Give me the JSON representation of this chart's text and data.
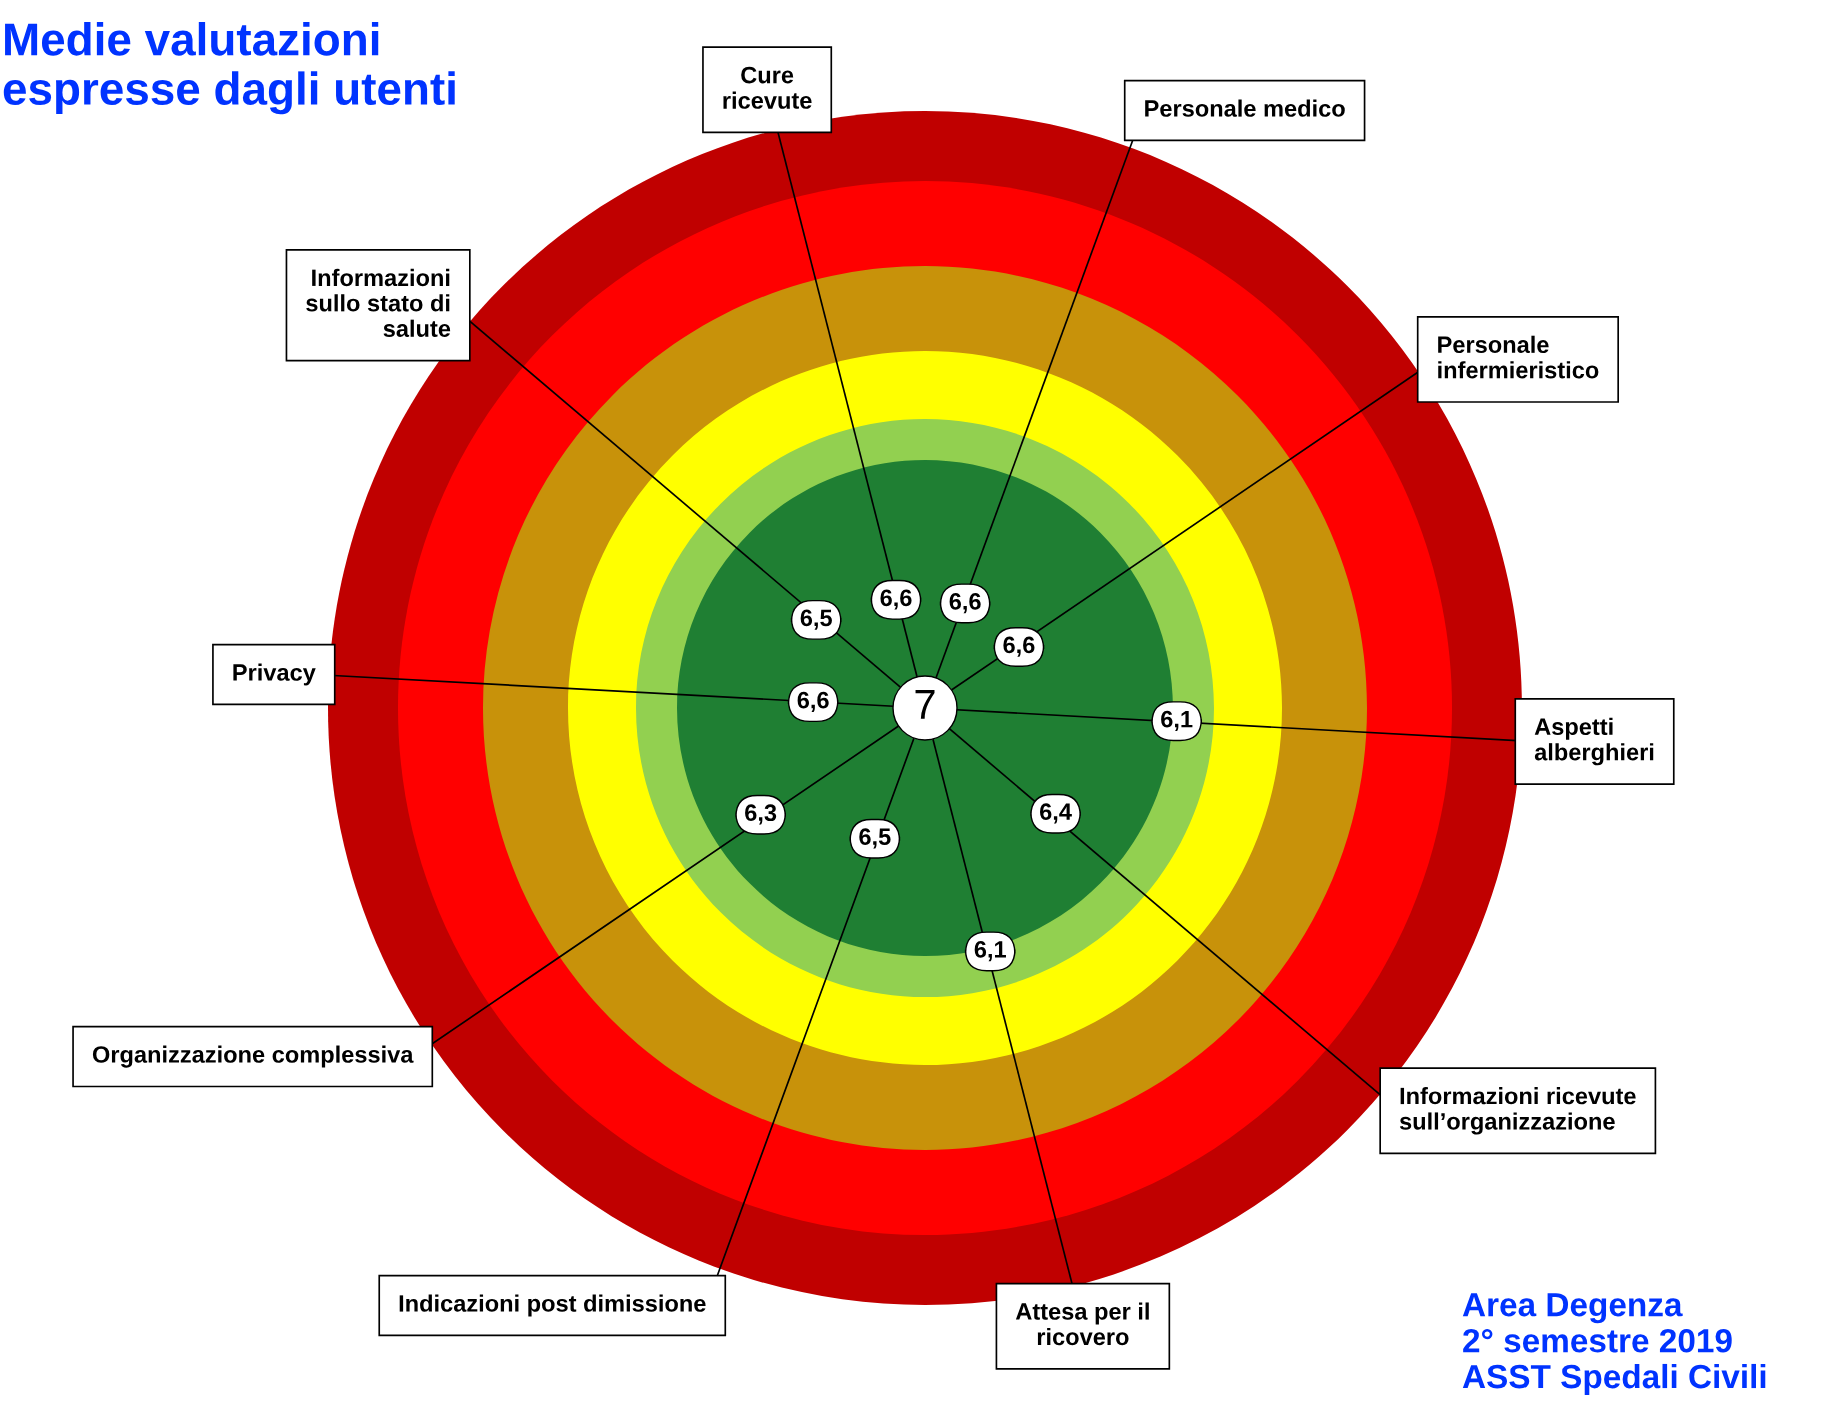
{
  "chart_data": {
    "type": "other",
    "title": "Medie valutazioni\nespresse dagli utenti",
    "categories": [
      "Cure\nricevute",
      "Personale medico",
      "Personale\ninfermieristico",
      "Aspetti\nalberghieri",
      "Informazioni ricevute\nsull’organizzazione",
      "Attesa per il\nricovero",
      "Indicazioni post dimissione",
      "Organizzazione complessiva",
      "Privacy",
      "Informazioni\nsullo stato di\nsalute"
    ],
    "values": [
      6.6,
      6.6,
      6.6,
      6.1,
      6.4,
      6.1,
      6.5,
      6.3,
      6.6,
      6.5
    ],
    "value_labels": [
      "6,6",
      "6,6",
      "6,6",
      "6,1",
      "6,4",
      "6,1",
      "6,5",
      "6,3",
      "6,6",
      "6,5"
    ],
    "annotations": [
      "7",
      "Area Degenza\n2° semestre 2019\nASST Spedali Civili"
    ]
  }
}
